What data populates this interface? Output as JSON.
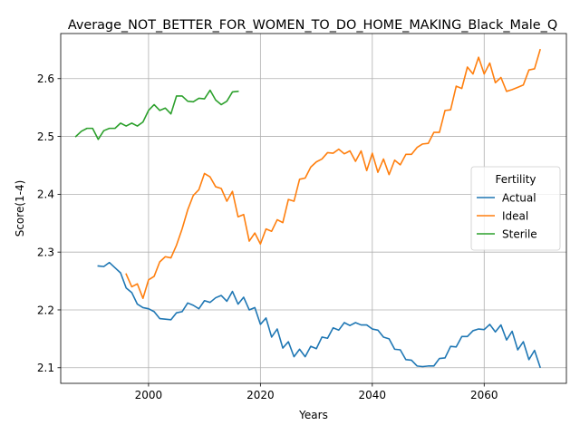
{
  "chart_data": {
    "type": "line",
    "title": "Average_NOT_BETTER_FOR_WOMEN_TO_DO_HOME_MAKING_Black_Male_Q",
    "xlabel": "Years",
    "ylabel": "Score(1-4)",
    "xlim": [
      1984.3,
      2074.7
    ],
    "ylim": [
      2.073,
      2.678
    ],
    "xticks": [
      2000,
      2020,
      2040,
      2060
    ],
    "yticks": [
      2.1,
      2.2,
      2.3,
      2.4,
      2.5,
      2.6
    ],
    "grid": true,
    "legend": {
      "title": "Fertility",
      "position": "center-right"
    },
    "series": [
      {
        "name": "Actual",
        "color": "#1f77b4",
        "x": [
          1991,
          1992,
          1993,
          1994,
          1995,
          1996,
          1997,
          1998,
          1999,
          2000,
          2001,
          2002,
          2003,
          2004,
          2005,
          2006,
          2007,
          2008,
          2009,
          2010,
          2011,
          2012,
          2013,
          2014,
          2015,
          2016,
          2017,
          2018,
          2019,
          2020,
          2021,
          2022,
          2023,
          2024,
          2025,
          2026,
          2027,
          2028,
          2029,
          2030,
          2031,
          2032,
          2033,
          2034,
          2035,
          2036,
          2037,
          2038,
          2039,
          2040,
          2041,
          2042,
          2043,
          2044,
          2045,
          2046,
          2047,
          2048,
          2049,
          2050,
          2051,
          2052,
          2053,
          2054,
          2055,
          2056,
          2057,
          2058,
          2059,
          2060,
          2061,
          2062,
          2063,
          2064,
          2065,
          2066,
          2067,
          2068,
          2069,
          2070
        ],
        "values": [
          2.276,
          2.275,
          2.282,
          2.273,
          2.264,
          2.238,
          2.23,
          2.21,
          2.204,
          2.202,
          2.197,
          2.185,
          2.184,
          2.183,
          2.195,
          2.197,
          2.212,
          2.208,
          2.202,
          2.216,
          2.213,
          2.221,
          2.225,
          2.215,
          2.232,
          2.21,
          2.222,
          2.2,
          2.204,
          2.175,
          2.186,
          2.153,
          2.167,
          2.134,
          2.145,
          2.119,
          2.132,
          2.119,
          2.137,
          2.133,
          2.153,
          2.151,
          2.169,
          2.165,
          2.178,
          2.173,
          2.178,
          2.174,
          2.174,
          2.167,
          2.165,
          2.153,
          2.15,
          2.132,
          2.131,
          2.114,
          2.113,
          2.103,
          2.102,
          2.103,
          2.103,
          2.116,
          2.117,
          2.137,
          2.136,
          2.154,
          2.154,
          2.164,
          2.167,
          2.166,
          2.175,
          2.162,
          2.174,
          2.148,
          2.163,
          2.131,
          2.145,
          2.114,
          2.13,
          2.101
        ]
      },
      {
        "name": "Ideal",
        "color": "#ff7f0e",
        "x": [
          1996,
          1997,
          1998,
          1999,
          2000,
          2001,
          2002,
          2003,
          2004,
          2005,
          2006,
          2007,
          2008,
          2009,
          2010,
          2011,
          2012,
          2013,
          2014,
          2015,
          2016,
          2017,
          2018,
          2019,
          2020,
          2021,
          2022,
          2023,
          2024,
          2025,
          2026,
          2027,
          2028,
          2029,
          2030,
          2031,
          2032,
          2033,
          2034,
          2035,
          2036,
          2037,
          2038,
          2039,
          2040,
          2041,
          2042,
          2043,
          2044,
          2045,
          2046,
          2047,
          2048,
          2049,
          2050,
          2051,
          2052,
          2053,
          2054,
          2055,
          2056,
          2057,
          2058,
          2059,
          2060,
          2061,
          2062,
          2063,
          2064,
          2065,
          2066,
          2067,
          2068,
          2069,
          2070
        ],
        "values": [
          2.262,
          2.24,
          2.245,
          2.22,
          2.252,
          2.258,
          2.283,
          2.292,
          2.29,
          2.312,
          2.34,
          2.373,
          2.398,
          2.408,
          2.436,
          2.43,
          2.413,
          2.41,
          2.388,
          2.405,
          2.361,
          2.365,
          2.319,
          2.333,
          2.314,
          2.34,
          2.336,
          2.356,
          2.351,
          2.391,
          2.388,
          2.426,
          2.428,
          2.447,
          2.456,
          2.461,
          2.472,
          2.471,
          2.478,
          2.47,
          2.475,
          2.457,
          2.475,
          2.441,
          2.471,
          2.438,
          2.461,
          2.434,
          2.459,
          2.451,
          2.469,
          2.469,
          2.481,
          2.487,
          2.488,
          2.507,
          2.507,
          2.545,
          2.546,
          2.587,
          2.583,
          2.62,
          2.608,
          2.637,
          2.608,
          2.627,
          2.593,
          2.602,
          2.578,
          2.581,
          2.585,
          2.589,
          2.615,
          2.617,
          2.65
        ]
      },
      {
        "name": "Sterile",
        "color": "#2ca02c",
        "x": [
          1987,
          1988,
          1989,
          1990,
          1991,
          1992,
          1993,
          1994,
          1995,
          1996,
          1997,
          1998,
          1999,
          2000,
          2001,
          2002,
          2003,
          2004,
          2005,
          2006,
          2007,
          2008,
          2009,
          2010,
          2011,
          2012,
          2013,
          2014,
          2015,
          2016
        ],
        "values": [
          2.5,
          2.509,
          2.514,
          2.514,
          2.495,
          2.51,
          2.514,
          2.514,
          2.523,
          2.518,
          2.523,
          2.518,
          2.525,
          2.545,
          2.555,
          2.545,
          2.549,
          2.539,
          2.57,
          2.57,
          2.561,
          2.56,
          2.566,
          2.565,
          2.58,
          2.563,
          2.555,
          2.561,
          2.577,
          2.578
        ]
      }
    ]
  }
}
